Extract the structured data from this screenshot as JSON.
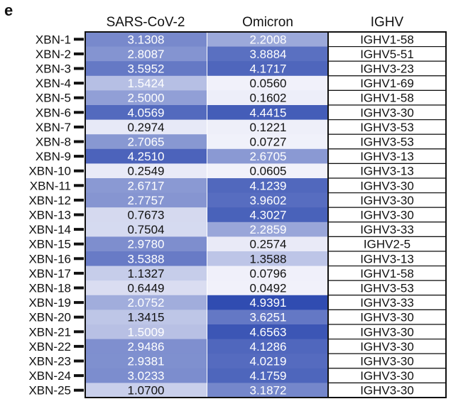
{
  "panel_label": "e",
  "headers": {
    "sars": "SARS-CoV-2",
    "omicron": "Omicron",
    "ighv": "IGHV"
  },
  "colors": {
    "low": "#f3f3fb",
    "high": "#2e4ab0",
    "light_text": "#ffffff",
    "dark_text": "#111111"
  },
  "chart_data": {
    "type": "heatmap",
    "rows": [
      "XBN-1",
      "XBN-2",
      "XBN-3",
      "XBN-4",
      "XBN-5",
      "XBN-6",
      "XBN-7",
      "XBN-8",
      "XBN-9",
      "XBN-10",
      "XBN-11",
      "XBN-12",
      "XBN-13",
      "XBN-14",
      "XBN-15",
      "XBN-16",
      "XBN-17",
      "XBN-18",
      "XBN-19",
      "XBN-20",
      "XBN-21",
      "XBN-22",
      "XBN-23",
      "XBN-24",
      "XBN-25"
    ],
    "columns": [
      "SARS-CoV-2",
      "Omicron"
    ],
    "values": [
      [
        "3.1308",
        "2.2008"
      ],
      [
        "2.8087",
        "3.8884"
      ],
      [
        "3.5952",
        "4.1717"
      ],
      [
        "1.5424",
        "0.0560"
      ],
      [
        "2.5000",
        "0.1602"
      ],
      [
        "4.0569",
        "4.4415"
      ],
      [
        "0.2974",
        "0.1221"
      ],
      [
        "2.7065",
        "0.0727"
      ],
      [
        "4.2510",
        "2.6705"
      ],
      [
        "0.2549",
        "0.0605"
      ],
      [
        "2.6717",
        "4.1239"
      ],
      [
        "2.7757",
        "3.9602"
      ],
      [
        "0.7673",
        "4.3027"
      ],
      [
        "0.7504",
        "2.2859"
      ],
      [
        "2.9780",
        "0.2574"
      ],
      [
        "3.5388",
        "1.3588"
      ],
      [
        "1.1327",
        "0.0796"
      ],
      [
        "0.6449",
        "0.0492"
      ],
      [
        "2.0752",
        "4.9391"
      ],
      [
        "1.3415",
        "3.6251"
      ],
      [
        "1.5009",
        "4.6563"
      ],
      [
        "2.9486",
        "4.1286"
      ],
      [
        "2.9381",
        "4.0219"
      ],
      [
        "3.0233",
        "4.1759"
      ],
      [
        "1.0700",
        "3.1872"
      ]
    ],
    "ighv": [
      "IGHV1-58",
      "IGHV5-51",
      "IGHV3-23",
      "IGHV1-69",
      "IGHV1-58",
      "IGHV3-30",
      "IGHV3-53",
      "IGHV3-53",
      "IGHV3-13",
      "IGHV3-13",
      "IGHV3-30",
      "IGHV3-30",
      "IGHV3-30",
      "IGHV3-33",
      "IGHV2-5",
      "IGHV3-13",
      "IGHV1-58",
      "IGHV3-53",
      "IGHV3-33",
      "IGHV3-30",
      "IGHV3-30",
      "IGHV3-30",
      "IGHV3-30",
      "IGHV3-30",
      "IGHV3-30"
    ],
    "color_range": [
      0,
      5
    ]
  }
}
